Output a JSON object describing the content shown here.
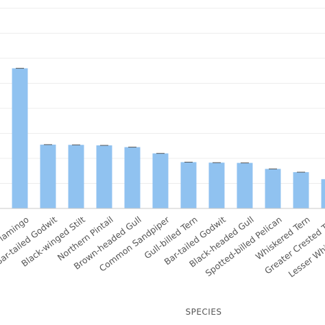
{
  "chart_data": {
    "type": "bar",
    "xlabel": "SPECIES",
    "ylabel": "",
    "ylim": [
      0,
      8
    ],
    "grid": true,
    "bar_color": "#90c2f0",
    "categories": [
      "Greater Flamingo",
      "Bar-tailed Godwit",
      "Black-winged Stilt",
      "Northern Pintail",
      "Brown-headed Gull",
      "Common Sandpiper",
      "Gull-billed Tern",
      "Bar-tailed Godwit",
      "Black-headed Gull",
      "Spotted-billed Pelican",
      "Whiskered Tern",
      "Greater Crested Tern",
      "Lesser Whistling Duck"
    ],
    "values": [
      5.6,
      2.55,
      2.54,
      2.52,
      2.45,
      2.2,
      1.85,
      1.83,
      1.82,
      1.58,
      1.45,
      1.17,
      0.9
    ]
  }
}
